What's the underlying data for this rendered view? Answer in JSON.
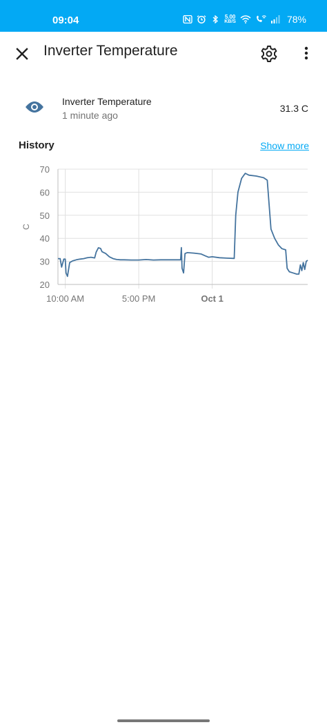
{
  "status_bar": {
    "time": "09:04",
    "speed_value": "5.00",
    "speed_unit": "KB/S",
    "battery": "78%"
  },
  "app_bar": {
    "title": "Inverter Temperature"
  },
  "entity": {
    "name": "Inverter Temperature",
    "last_changed": "1 minute ago",
    "state": "31.3 C"
  },
  "history": {
    "label": "History",
    "show_more": "Show more"
  },
  "colors": {
    "accent": "#03a9f4",
    "line": "#44739e",
    "eye": "#44739e"
  },
  "chart_data": {
    "type": "line",
    "xlabel": "",
    "ylabel": "C",
    "ylim": [
      20,
      70
    ],
    "yticks": [
      20,
      30,
      40,
      50,
      60,
      70
    ],
    "xlim": [
      0,
      34
    ],
    "xticks": [
      {
        "x": 1,
        "label": "10:00 AM",
        "bold": false
      },
      {
        "x": 11,
        "label": "5:00 PM",
        "bold": false
      },
      {
        "x": 21,
        "label": "Oct 1",
        "bold": true
      }
    ],
    "series": [
      {
        "points": [
          [
            0.0,
            31.2
          ],
          [
            0.3,
            31.2
          ],
          [
            0.5,
            27.5
          ],
          [
            0.8,
            31.0
          ],
          [
            1.0,
            31.0
          ],
          [
            1.1,
            25.0
          ],
          [
            1.3,
            23.5
          ],
          [
            1.6,
            29.5
          ],
          [
            2.0,
            30.2
          ],
          [
            2.5,
            30.7
          ],
          [
            3.0,
            31.0
          ],
          [
            3.5,
            31.2
          ],
          [
            4.0,
            31.6
          ],
          [
            4.5,
            31.8
          ],
          [
            5.0,
            31.5
          ],
          [
            5.2,
            34.0
          ],
          [
            5.5,
            35.9
          ],
          [
            5.8,
            35.6
          ],
          [
            6.0,
            34.2
          ],
          [
            6.5,
            33.4
          ],
          [
            7.0,
            32.0
          ],
          [
            7.5,
            31.2
          ],
          [
            8.0,
            30.8
          ],
          [
            8.5,
            30.7
          ],
          [
            9.0,
            30.7
          ],
          [
            10.0,
            30.6
          ],
          [
            11.0,
            30.6
          ],
          [
            12.0,
            30.8
          ],
          [
            13.0,
            30.6
          ],
          [
            14.0,
            30.7
          ],
          [
            15.0,
            30.7
          ],
          [
            16.0,
            30.7
          ],
          [
            16.7,
            30.7
          ],
          [
            16.8,
            36.0
          ],
          [
            16.9,
            27.0
          ],
          [
            17.1,
            25.0
          ],
          [
            17.3,
            33.4
          ],
          [
            17.6,
            33.8
          ],
          [
            18.5,
            33.6
          ],
          [
            19.5,
            33.2
          ],
          [
            20.0,
            32.5
          ],
          [
            20.5,
            31.8
          ],
          [
            21.0,
            32.0
          ],
          [
            22.0,
            31.6
          ],
          [
            23.0,
            31.4
          ],
          [
            24.0,
            31.3
          ],
          [
            24.2,
            50.0
          ],
          [
            24.5,
            60.0
          ],
          [
            25.0,
            66.0
          ],
          [
            25.5,
            68.2
          ],
          [
            26.0,
            67.4
          ],
          [
            27.0,
            67.0
          ],
          [
            28.0,
            66.3
          ],
          [
            28.5,
            65.2
          ],
          [
            29.0,
            44.0
          ],
          [
            29.5,
            40.0
          ],
          [
            30.0,
            37.2
          ],
          [
            30.5,
            35.5
          ],
          [
            31.0,
            35.0
          ],
          [
            31.2,
            27.0
          ],
          [
            31.5,
            25.5
          ],
          [
            32.0,
            25.0
          ],
          [
            32.5,
            24.5
          ],
          [
            32.8,
            24.5
          ],
          [
            33.0,
            28.5
          ],
          [
            33.2,
            26.0
          ],
          [
            33.4,
            29.5
          ],
          [
            33.6,
            26.5
          ],
          [
            33.8,
            30.0
          ],
          [
            34.0,
            30.5
          ]
        ]
      }
    ]
  }
}
